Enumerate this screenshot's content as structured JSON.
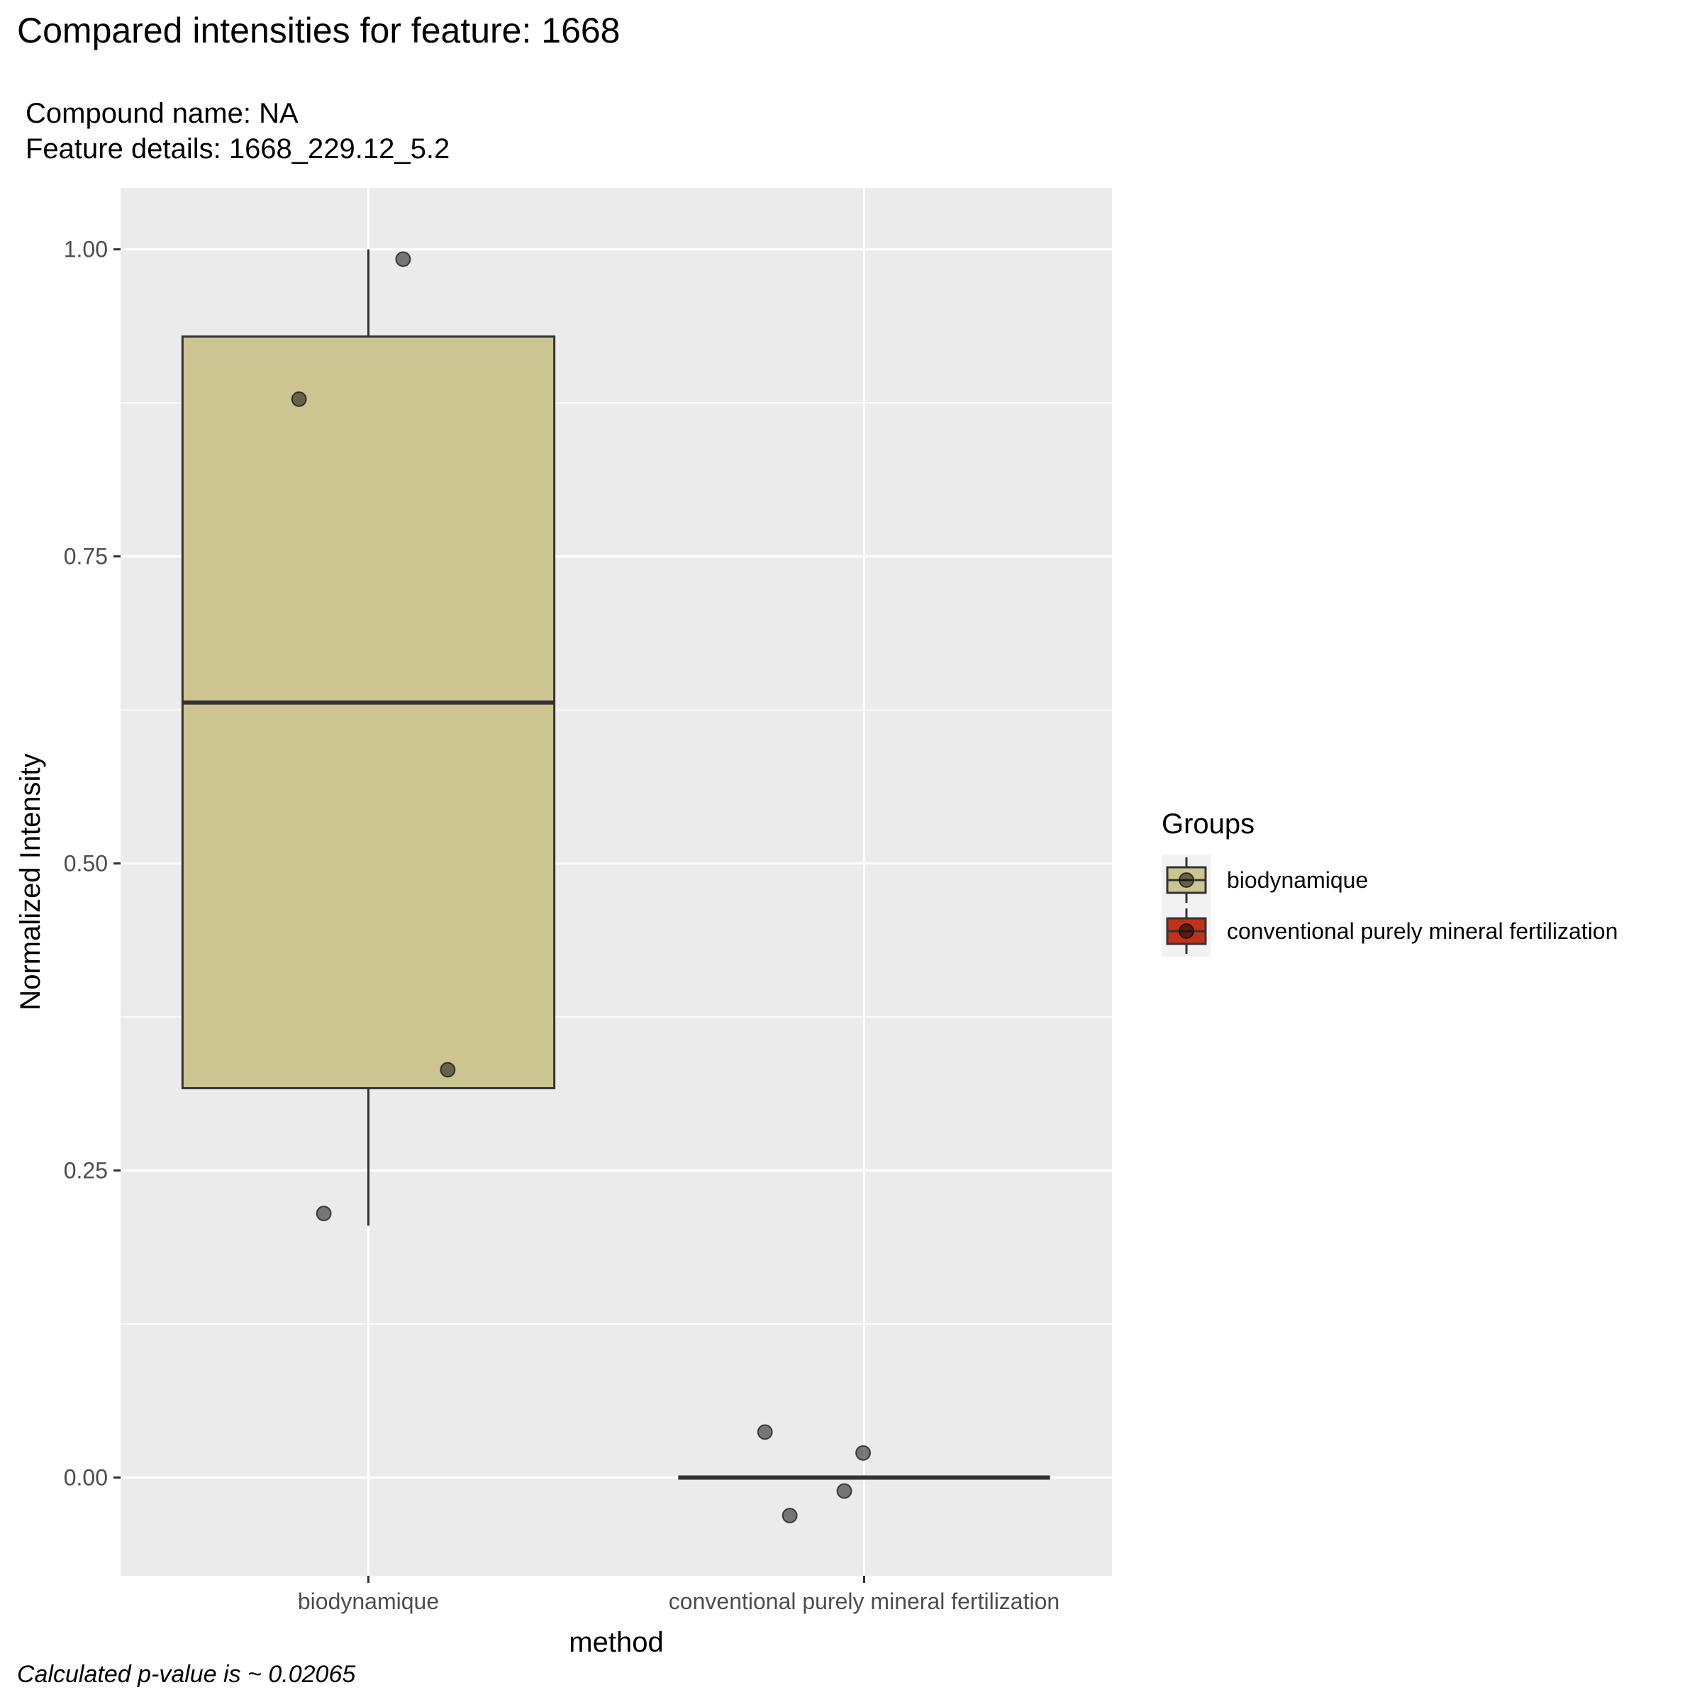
{
  "header": {
    "title": "Compared intensities for feature: 1668",
    "compound": "Compound name:  NA",
    "details": "Feature details:  1668_229.12_5.2"
  },
  "footer": {
    "pvalue": "Calculated p-value is ~  0.02065"
  },
  "chart_data": {
    "type": "box",
    "xlabel": "method",
    "ylabel": "Normalized Intensity",
    "ylim": [
      -0.08,
      1.05
    ],
    "yticks": [
      0.0,
      0.25,
      0.5,
      0.75,
      1.0
    ],
    "ytick_labels": [
      "0.00",
      "0.25",
      "0.50",
      "0.75",
      "1.00"
    ],
    "categories": [
      "biodynamique",
      "conventional purely mineral fertilization"
    ],
    "grid": true,
    "legend": {
      "title": "Groups",
      "placement": "right",
      "entries": [
        "biodynamique",
        "conventional purely mineral fertilization"
      ]
    },
    "boxes": [
      {
        "category": "biodynamique",
        "min": 0.205,
        "q1": 0.317,
        "median": 0.631,
        "q3": 0.929,
        "max": 1.0,
        "color": "#ccc591"
      },
      {
        "category": "conventional purely mineral fertilization",
        "min": 0.0,
        "q1": 0.0,
        "median": 0.0,
        "q3": 0.0,
        "max": 0.0,
        "color": "#c0321a"
      }
    ],
    "points": [
      {
        "category": "biodynamique",
        "jitter": 0.07,
        "y": 0.992
      },
      {
        "category": "biodynamique",
        "jitter": -0.14,
        "y": 0.878
      },
      {
        "category": "biodynamique",
        "jitter": 0.16,
        "y": 0.332
      },
      {
        "category": "biodynamique",
        "jitter": -0.09,
        "y": 0.215
      },
      {
        "category": "conventional purely mineral fertilization",
        "jitter": -0.2,
        "y": 0.037
      },
      {
        "category": "conventional purely mineral fertilization",
        "jitter": -0.002,
        "y": 0.02
      },
      {
        "category": "conventional purely mineral fertilization",
        "jitter": -0.04,
        "y": -0.011
      },
      {
        "category": "conventional purely mineral fertilization",
        "jitter": -0.15,
        "y": -0.031
      }
    ]
  }
}
